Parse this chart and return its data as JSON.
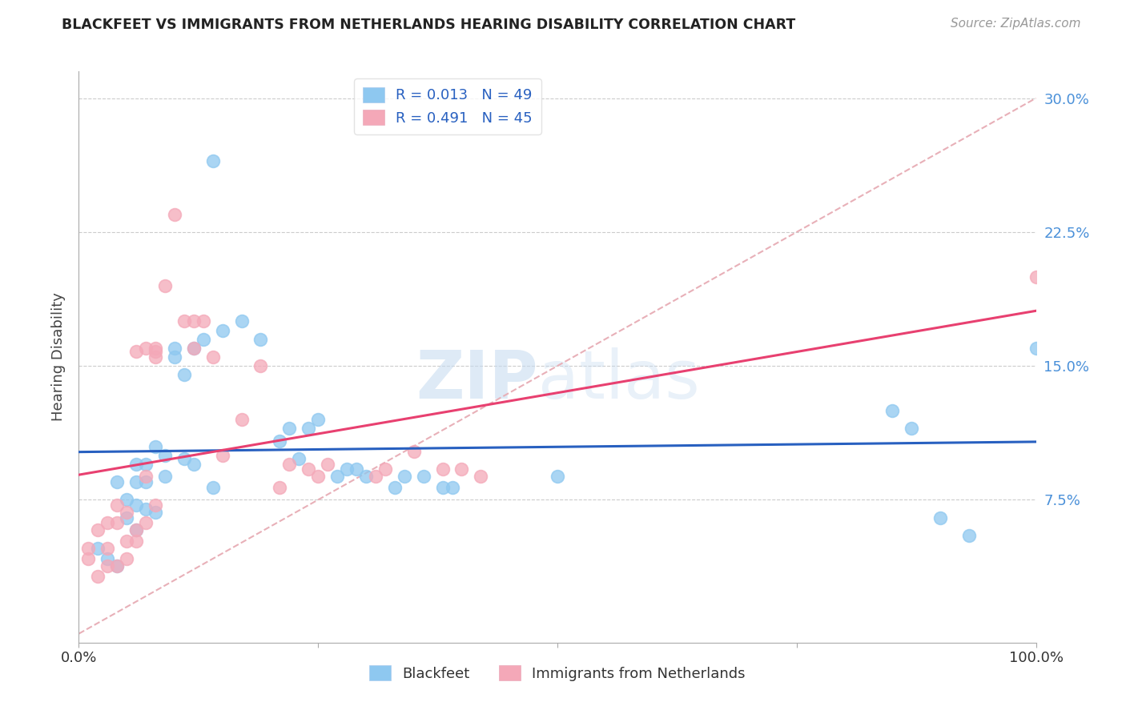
{
  "title": "BLACKFEET VS IMMIGRANTS FROM NETHERLANDS HEARING DISABILITY CORRELATION CHART",
  "source_text": "Source: ZipAtlas.com",
  "ylabel": "Hearing Disability",
  "xlim": [
    0,
    1.0
  ],
  "ylim": [
    -0.005,
    0.315
  ],
  "yticks": [
    0.075,
    0.15,
    0.225,
    0.3
  ],
  "ytick_labels": [
    "7.5%",
    "15.0%",
    "22.5%",
    "30.0%"
  ],
  "xticks": [
    0.0,
    0.25,
    0.5,
    0.75,
    1.0
  ],
  "xtick_labels": [
    "0.0%",
    "",
    "",
    "",
    "100.0%"
  ],
  "legend1_label": "R = 0.013   N = 49",
  "legend2_label": "R = 0.491   N = 45",
  "blue_color": "#8ec8f0",
  "pink_color": "#f4a8b8",
  "blue_line_color": "#2860c0",
  "pink_line_color": "#e84070",
  "diag_line_color": "#e8b0b8",
  "watermark_color": "#c8dcf0",
  "background_color": "#ffffff",
  "blue_points_x": [
    0.14,
    0.04,
    0.06,
    0.06,
    0.07,
    0.07,
    0.08,
    0.09,
    0.1,
    0.1,
    0.11,
    0.12,
    0.13,
    0.15,
    0.17,
    0.19,
    0.22,
    0.24,
    0.25,
    0.28,
    0.29,
    0.3,
    0.34,
    0.36,
    0.39,
    0.5,
    0.85,
    0.87,
    0.9,
    0.93,
    0.02,
    0.03,
    0.04,
    0.05,
    0.05,
    0.06,
    0.06,
    0.07,
    0.08,
    0.09,
    0.11,
    0.12,
    0.14,
    0.21,
    0.23,
    0.27,
    0.33,
    0.38,
    1.0
  ],
  "blue_points_y": [
    0.265,
    0.085,
    0.085,
    0.095,
    0.085,
    0.095,
    0.105,
    0.1,
    0.16,
    0.155,
    0.145,
    0.16,
    0.165,
    0.17,
    0.175,
    0.165,
    0.115,
    0.115,
    0.12,
    0.092,
    0.092,
    0.088,
    0.088,
    0.088,
    0.082,
    0.088,
    0.125,
    0.115,
    0.065,
    0.055,
    0.048,
    0.042,
    0.038,
    0.065,
    0.075,
    0.058,
    0.072,
    0.07,
    0.068,
    0.088,
    0.098,
    0.095,
    0.082,
    0.108,
    0.098,
    0.088,
    0.082,
    0.082,
    0.16
  ],
  "pink_points_x": [
    0.01,
    0.01,
    0.02,
    0.02,
    0.03,
    0.03,
    0.03,
    0.04,
    0.04,
    0.04,
    0.05,
    0.05,
    0.05,
    0.06,
    0.06,
    0.07,
    0.07,
    0.08,
    0.08,
    0.09,
    0.1,
    0.11,
    0.12,
    0.12,
    0.13,
    0.14,
    0.15,
    0.17,
    0.19,
    0.21,
    0.22,
    0.24,
    0.25,
    0.26,
    0.31,
    0.32,
    0.35,
    0.38,
    0.4,
    0.42,
    0.06,
    0.07,
    0.08,
    0.08,
    1.0
  ],
  "pink_points_y": [
    0.042,
    0.048,
    0.032,
    0.058,
    0.048,
    0.062,
    0.038,
    0.038,
    0.062,
    0.072,
    0.042,
    0.052,
    0.068,
    0.052,
    0.058,
    0.062,
    0.088,
    0.072,
    0.155,
    0.195,
    0.235,
    0.175,
    0.175,
    0.16,
    0.175,
    0.155,
    0.1,
    0.12,
    0.15,
    0.082,
    0.095,
    0.092,
    0.088,
    0.095,
    0.088,
    0.092,
    0.102,
    0.092,
    0.092,
    0.088,
    0.158,
    0.16,
    0.158,
    0.16,
    0.2
  ]
}
